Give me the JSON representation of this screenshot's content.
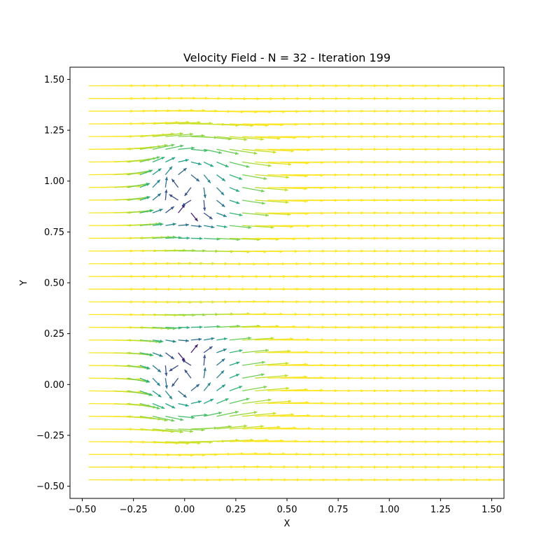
{
  "chart_data": {
    "type": "quiver",
    "title": "Velocity Field - N = 32 - Iteration 199",
    "xlabel": "X",
    "ylabel": "Y",
    "xlim": [
      -0.56,
      1.56
    ],
    "ylim": [
      -0.56,
      1.56
    ],
    "xticks": [
      -0.5,
      -0.25,
      0.0,
      0.25,
      0.5,
      0.75,
      1.0,
      1.25,
      1.5
    ],
    "xtick_labels": [
      "−0.50",
      "−0.25",
      "0.00",
      "0.25",
      "0.50",
      "0.75",
      "1.00",
      "1.25",
      "1.50"
    ],
    "yticks": [
      -0.5,
      -0.25,
      0.0,
      0.25,
      0.5,
      0.75,
      1.0,
      1.25,
      1.5
    ],
    "ytick_labels": [
      "−0.50",
      "−0.25",
      "0.00",
      "0.25",
      "0.50",
      "0.75",
      "1.00",
      "1.25",
      "1.50"
    ],
    "grid": false,
    "colormap": "viridis",
    "colors": {
      "low": "#440154",
      "mid": "#21918c",
      "high": "#fde725"
    },
    "grid_points": {
      "x_start": -0.46875,
      "x_step": 0.0625,
      "nx": 32,
      "y_start": -0.46875,
      "y_step": 0.0625,
      "ny": 32
    },
    "field_description": "uniform rightward flow with two vortex-like recirculation zones centered near (0,0) and (0,1)"
  }
}
